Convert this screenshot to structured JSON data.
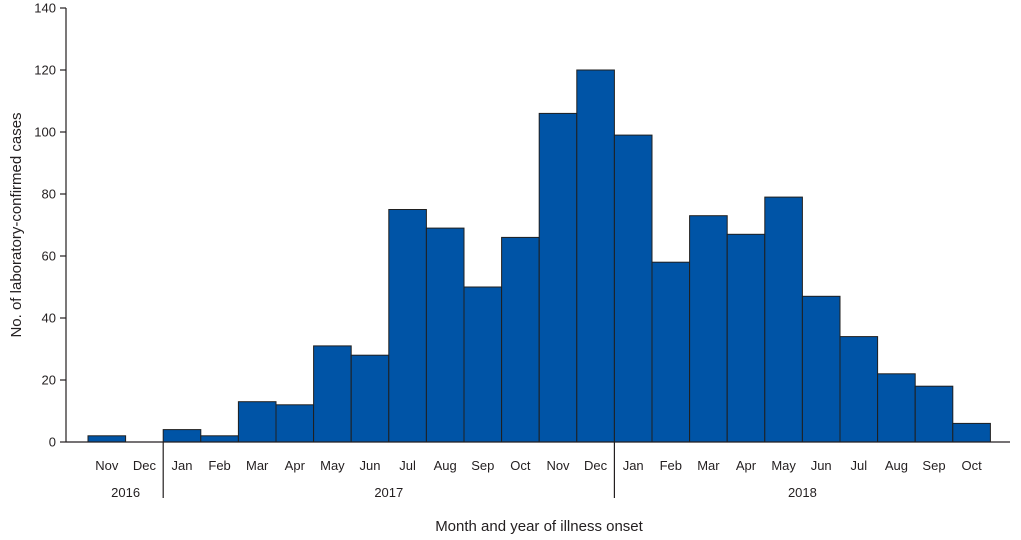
{
  "chart_data": {
    "type": "bar",
    "xlabel": "Month and year of illness onset",
    "ylabel": "No. of laboratory-confirmed cases",
    "ylim": [
      0,
      140
    ],
    "yticks": [
      "0",
      "20",
      "40",
      "60",
      "80",
      "100",
      "120",
      "140"
    ],
    "grid": false,
    "bar_color": "#0054a6",
    "categories": [
      "Nov",
      "Dec",
      "Jan",
      "Feb",
      "Mar",
      "Apr",
      "May",
      "Jun",
      "Jul",
      "Aug",
      "Sep",
      "Oct",
      "Nov",
      "Dec",
      "Jan",
      "Feb",
      "Mar",
      "Apr",
      "May",
      "Jun",
      "Jul",
      "Aug",
      "Sep",
      "Oct"
    ],
    "values": [
      2,
      0,
      4,
      2,
      13,
      12,
      31,
      28,
      75,
      69,
      50,
      66,
      106,
      120,
      99,
      58,
      73,
      67,
      79,
      47,
      34,
      22,
      18,
      6
    ],
    "year_groups": [
      {
        "label": "2016",
        "count": 2
      },
      {
        "label": "2017",
        "count": 12
      },
      {
        "label": "2018",
        "count": 10
      }
    ]
  }
}
